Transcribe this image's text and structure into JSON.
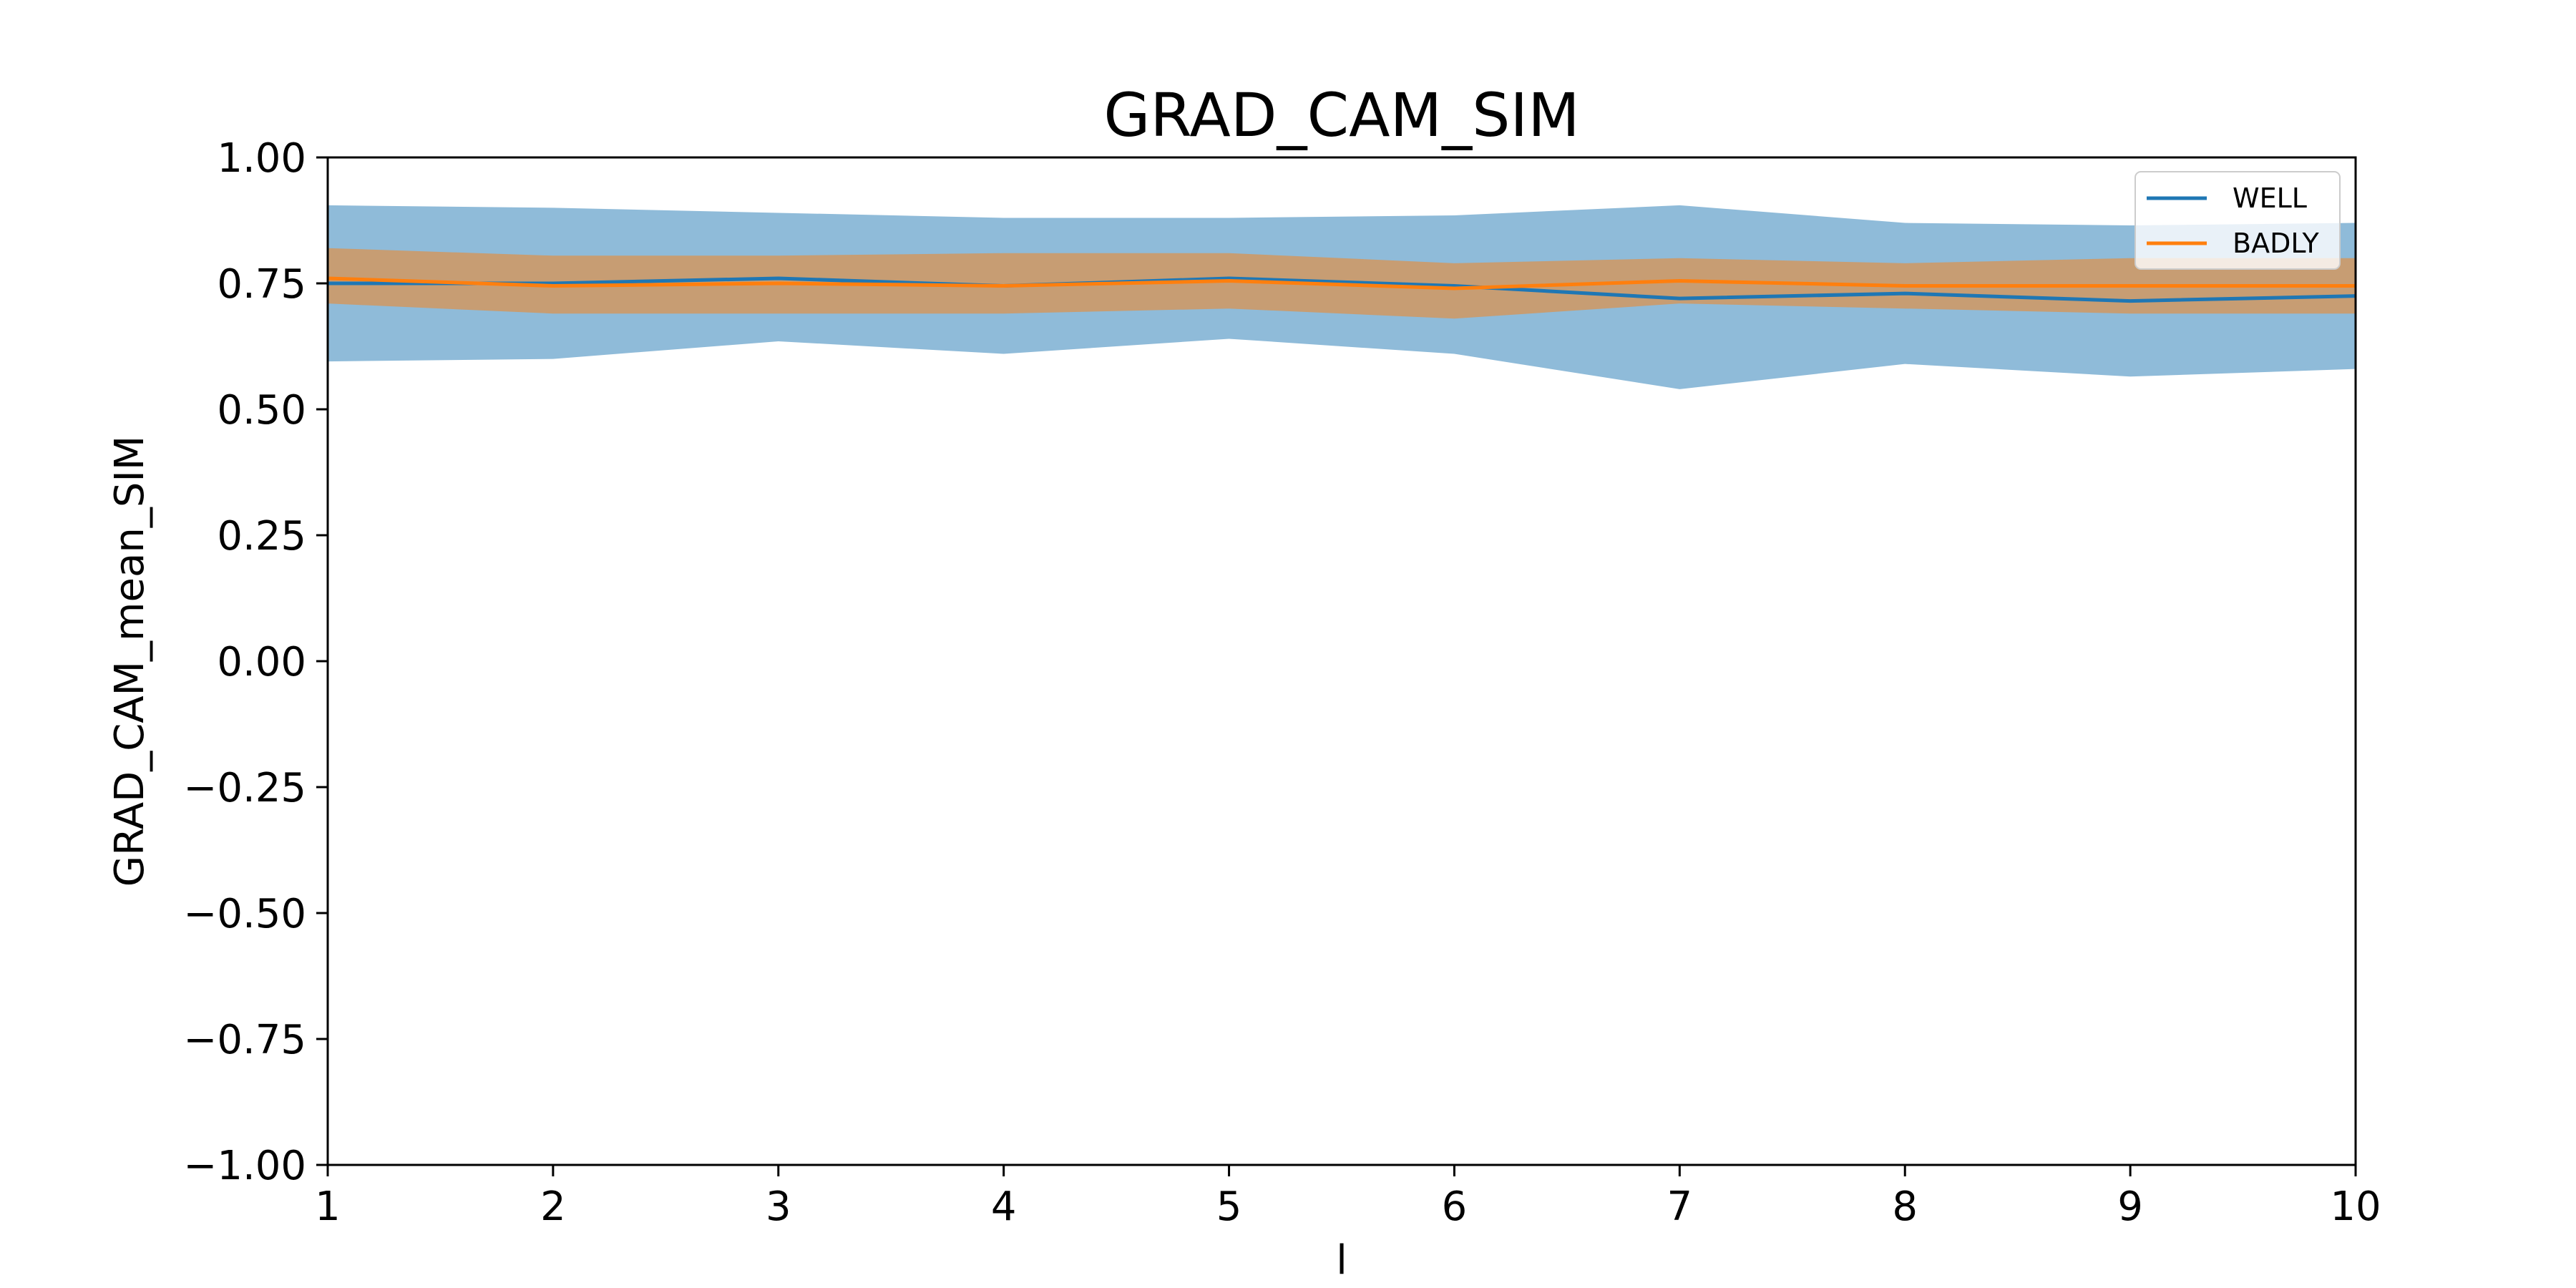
{
  "chart_data": {
    "type": "line",
    "title": "GRAD_CAM_SIM",
    "xlabel": "l",
    "ylabel": "GRAD_CAM_mean_SIM",
    "xlim": [
      1,
      10
    ],
    "ylim": [
      -1.0,
      1.0
    ],
    "x": [
      1,
      2,
      3,
      4,
      5,
      6,
      7,
      8,
      9,
      10
    ],
    "xticks": [
      1,
      2,
      3,
      4,
      5,
      6,
      7,
      8,
      9,
      10
    ],
    "xtick_labels": [
      "1",
      "2",
      "3",
      "4",
      "5",
      "6",
      "7",
      "8",
      "9",
      "10"
    ],
    "yticks": [
      1.0,
      0.75,
      0.5,
      0.25,
      0.0,
      -0.25,
      -0.5,
      -0.75,
      -1.0
    ],
    "ytick_labels": [
      "1.00",
      "0.75",
      "0.50",
      "0.25",
      "0.00",
      "−0.25",
      "−0.50",
      "−0.75",
      "−1.00"
    ],
    "grid": false,
    "legend_position": "top-right",
    "series": [
      {
        "name": "WELL",
        "color": "#1f77b4",
        "band_color": "#1f77b4",
        "values": [
          0.75,
          0.75,
          0.76,
          0.745,
          0.76,
          0.745,
          0.72,
          0.73,
          0.715,
          0.725
        ],
        "lower": [
          0.595,
          0.6,
          0.635,
          0.61,
          0.64,
          0.61,
          0.54,
          0.59,
          0.565,
          0.58
        ],
        "upper": [
          0.905,
          0.9,
          0.89,
          0.88,
          0.88,
          0.885,
          0.905,
          0.87,
          0.865,
          0.87
        ]
      },
      {
        "name": "BADLY",
        "color": "#ff7f0e",
        "band_color": "#ff7f0e",
        "values": [
          0.76,
          0.745,
          0.75,
          0.745,
          0.755,
          0.74,
          0.755,
          0.745,
          0.745,
          0.745
        ],
        "lower": [
          0.71,
          0.69,
          0.69,
          0.69,
          0.7,
          0.68,
          0.71,
          0.7,
          0.69,
          0.69
        ],
        "upper": [
          0.82,
          0.805,
          0.805,
          0.81,
          0.81,
          0.79,
          0.8,
          0.79,
          0.8,
          0.8
        ]
      }
    ]
  }
}
